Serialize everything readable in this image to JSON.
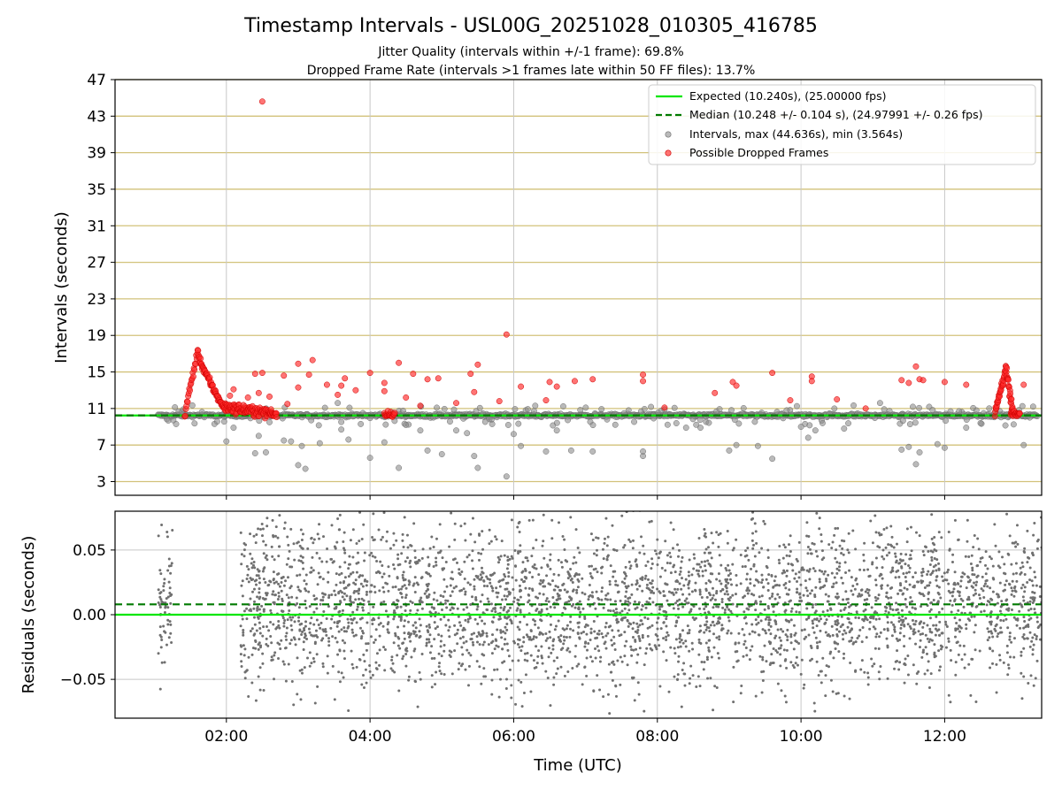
{
  "chart_data": [
    {
      "type": "scatter",
      "title": "Timestamp Intervals - USL00G_20251028_010305_416785",
      "subtitle_lines": [
        "Jitter Quality (intervals within +/-1 frame): 69.8%",
        "Dropped Frame Rate (intervals >1 frames late within 50 FF files): 13.7%"
      ],
      "xlabel": "",
      "ylabel": "Intervals (seconds)",
      "xlim_hours": [
        0.45,
        13.35
      ],
      "ylim": [
        1.5,
        47
      ],
      "yticks": [
        3,
        7,
        11,
        15,
        19,
        23,
        27,
        31,
        35,
        39,
        43,
        47
      ],
      "xticks_hours": [
        2,
        4,
        6,
        8,
        10,
        12
      ],
      "horizontal_gridlines_color": "#d2c27a",
      "expected_interval": 10.24,
      "median_interval": 10.248,
      "max_interval": 44.636,
      "min_interval": 3.564,
      "legend_position": "top-right",
      "legend": [
        {
          "label": "Expected (10.240s), (25.00000 fps)",
          "style": "solid-line",
          "color": "#00e600"
        },
        {
          "label": "Median (10.248 +/- 0.104 s), (24.97991 +/- 0.26 fps)",
          "style": "dashed-line",
          "color": "#007a00"
        },
        {
          "label": "Intervals, max (44.636s), min (3.564s)",
          "style": "marker",
          "color": "#8c8c8c"
        },
        {
          "label": "Possible Dropped Frames",
          "style": "marker",
          "color": "#ff2a2a"
        }
      ],
      "series": [
        {
          "name": "Intervals",
          "color": "#8c8c8c",
          "note": "dense band near 10.24 s from ~01:05 to 13:20 UTC with scattered outliers",
          "baseline_range_hours": [
            1.05,
            13.3
          ],
          "outliers": [
            [
              1.3,
              9.3
            ],
            [
              1.4,
              10.9
            ],
            [
              2.0,
              7.4
            ],
            [
              2.1,
              8.9
            ],
            [
              2.45,
              8.0
            ],
            [
              2.4,
              6.1
            ],
            [
              2.55,
              6.2
            ],
            [
              2.6,
              9.5
            ],
            [
              2.8,
              7.5
            ],
            [
              2.9,
              7.4
            ],
            [
              3.0,
              4.8
            ],
            [
              3.05,
              6.9
            ],
            [
              3.1,
              4.4
            ],
            [
              3.3,
              7.2
            ],
            [
              3.55,
              11.6
            ],
            [
              3.6,
              8.7
            ],
            [
              3.7,
              7.6
            ],
            [
              3.9,
              10.5
            ],
            [
              4.0,
              5.6
            ],
            [
              4.2,
              7.3
            ],
            [
              4.4,
              4.5
            ],
            [
              4.5,
              9.2
            ],
            [
              4.7,
              8.6
            ],
            [
              4.8,
              6.4
            ],
            [
              5.0,
              6.0
            ],
            [
              5.2,
              8.6
            ],
            [
              5.35,
              8.3
            ],
            [
              5.45,
              5.8
            ],
            [
              5.5,
              4.5
            ],
            [
              5.7,
              9.3
            ],
            [
              5.9,
              3.56
            ],
            [
              6.0,
              8.2
            ],
            [
              6.1,
              6.9
            ],
            [
              6.3,
              11.3
            ],
            [
              6.45,
              6.3
            ],
            [
              6.6,
              8.6
            ],
            [
              6.8,
              6.4
            ],
            [
              7.1,
              6.3
            ],
            [
              7.3,
              9.8
            ],
            [
              7.6,
              10.8
            ],
            [
              7.8,
              5.8
            ],
            [
              7.8,
              6.3
            ],
            [
              8.1,
              10.9
            ],
            [
              8.4,
              8.9
            ],
            [
              8.6,
              8.9
            ],
            [
              9.0,
              6.4
            ],
            [
              9.1,
              7.0
            ],
            [
              9.4,
              6.9
            ],
            [
              9.6,
              5.5
            ],
            [
              9.8,
              10.8
            ],
            [
              10.0,
              9.0
            ],
            [
              10.1,
              7.8
            ],
            [
              10.2,
              8.6
            ],
            [
              10.3,
              9.4
            ],
            [
              10.6,
              8.8
            ],
            [
              10.8,
              10.2
            ],
            [
              11.1,
              11.6
            ],
            [
              11.4,
              6.5
            ],
            [
              11.5,
              6.8
            ],
            [
              11.6,
              4.9
            ],
            [
              11.65,
              6.2
            ],
            [
              11.9,
              7.1
            ],
            [
              12.0,
              6.7
            ],
            [
              12.2,
              10.7
            ],
            [
              12.3,
              8.9
            ],
            [
              12.5,
              9.4
            ],
            [
              13.1,
              7.0
            ]
          ]
        },
        {
          "name": "Possible Dropped Frames",
          "color": "#ff2a2a",
          "note": "red markers: spike near 01:35, dense band 02:00-02:40, spike near 12:50, scattered points",
          "spike_1": {
            "start_hour": 1.42,
            "peak_hour": 1.6,
            "peak_value": 17.2,
            "end_hour": 1.95
          },
          "spike_2": {
            "start_hour": 12.7,
            "peak_hour": 12.85,
            "peak_value": 15.4,
            "end_hour": 12.95
          },
          "points": [
            [
              2.5,
              44.6
            ],
            [
              5.9,
              19.1
            ],
            [
              2.05,
              12.4
            ],
            [
              2.1,
              13.1
            ],
            [
              2.3,
              12.2
            ],
            [
              2.4,
              14.8
            ],
            [
              2.45,
              12.7
            ],
            [
              2.5,
              14.9
            ],
            [
              2.6,
              12.3
            ],
            [
              2.8,
              14.6
            ],
            [
              2.85,
              11.5
            ],
            [
              3.0,
              15.9
            ],
            [
              3.0,
              13.3
            ],
            [
              3.2,
              16.3
            ],
            [
              3.15,
              14.7
            ],
            [
              3.4,
              13.6
            ],
            [
              3.55,
              12.5
            ],
            [
              3.6,
              13.5
            ],
            [
              3.65,
              14.3
            ],
            [
              3.8,
              13.0
            ],
            [
              4.0,
              14.9
            ],
            [
              4.2,
              13.8
            ],
            [
              4.2,
              12.9
            ],
            [
              4.4,
              16.0
            ],
            [
              4.5,
              12.2
            ],
            [
              4.6,
              14.8
            ],
            [
              4.7,
              11.3
            ],
            [
              4.8,
              14.2
            ],
            [
              4.95,
              14.3
            ],
            [
              5.2,
              11.6
            ],
            [
              5.4,
              14.8
            ],
            [
              5.45,
              12.8
            ],
            [
              5.5,
              15.8
            ],
            [
              5.8,
              11.8
            ],
            [
              6.1,
              13.4
            ],
            [
              6.45,
              11.9
            ],
            [
              6.5,
              13.9
            ],
            [
              6.6,
              13.4
            ],
            [
              6.85,
              14.0
            ],
            [
              7.1,
              14.2
            ],
            [
              7.8,
              14.7
            ],
            [
              7.8,
              14.0
            ],
            [
              8.1,
              11.1
            ],
            [
              8.8,
              12.7
            ],
            [
              9.05,
              13.9
            ],
            [
              9.1,
              13.5
            ],
            [
              9.6,
              14.9
            ],
            [
              9.85,
              11.9
            ],
            [
              10.15,
              14.5
            ],
            [
              10.15,
              14.0
            ],
            [
              10.5,
              12.0
            ],
            [
              10.9,
              11.0
            ],
            [
              11.4,
              14.1
            ],
            [
              11.5,
              13.8
            ],
            [
              11.6,
              15.6
            ],
            [
              11.65,
              14.2
            ],
            [
              11.7,
              14.1
            ],
            [
              12.0,
              13.9
            ],
            [
              12.3,
              13.6
            ],
            [
              13.1,
              13.6
            ]
          ]
        }
      ],
      "lines": [
        {
          "name": "Expected",
          "value": 10.24,
          "style": "solid",
          "color": "#00e600"
        },
        {
          "name": "Median",
          "value": 10.248,
          "style": "dashed",
          "color": "#007a00"
        }
      ]
    },
    {
      "type": "scatter",
      "title": "",
      "xlabel": "Time (UTC)",
      "ylabel": "Residuals (seconds)",
      "xlim_hours": [
        0.45,
        13.35
      ],
      "ylim": [
        -0.08,
        0.08
      ],
      "yticks": [
        -0.05,
        0.0,
        0.05
      ],
      "ytick_labels": [
        "−0.05",
        "0.00",
        "0.05"
      ],
      "xticks_hours": [
        2,
        4,
        6,
        8,
        10,
        12
      ],
      "xtick_labels": [
        "02:00",
        "04:00",
        "06:00",
        "08:00",
        "10:00",
        "12:00"
      ],
      "series": [
        {
          "name": "Residuals",
          "color": "#707070",
          "note": "dense cloud of residual points; sparse cluster 01:05-01:25, gap 01:25-02:20, dense 02:20-13:20 centered ~0.01",
          "clusters": [
            {
              "start_hour": 1.05,
              "end_hour": 1.25,
              "center": 0.01,
              "spread": 0.035
            },
            {
              "start_hour": 2.2,
              "end_hour": 13.35,
              "center": 0.008,
              "spread": 0.045
            }
          ]
        }
      ],
      "lines": [
        {
          "name": "Expected",
          "value": 0.0,
          "style": "solid",
          "color": "#00e600"
        },
        {
          "name": "Median",
          "value": 0.008,
          "style": "dashed",
          "color": "#007a00"
        }
      ]
    }
  ]
}
